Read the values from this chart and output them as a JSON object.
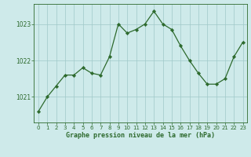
{
  "x": [
    0,
    1,
    2,
    3,
    4,
    5,
    6,
    7,
    8,
    9,
    10,
    11,
    12,
    13,
    14,
    15,
    16,
    17,
    18,
    19,
    20,
    21,
    22,
    23
  ],
  "y": [
    1020.6,
    1021.0,
    1021.3,
    1021.6,
    1021.6,
    1021.8,
    1021.65,
    1021.6,
    1022.1,
    1023.0,
    1022.75,
    1022.85,
    1023.0,
    1023.35,
    1023.0,
    1022.85,
    1022.4,
    1022.0,
    1021.65,
    1021.35,
    1021.35,
    1021.5,
    1022.1,
    1022.5
  ],
  "line_color": "#2d6a2d",
  "marker_color": "#2d6a2d",
  "bg_color": "#ceeaea",
  "grid_color": "#9fc8c8",
  "xlabel": "Graphe pression niveau de la mer (hPa)",
  "xlabel_color": "#2d6a2d",
  "tick_color": "#2d6a2d",
  "ylim": [
    1020.3,
    1023.55
  ],
  "yticks": [
    1021,
    1022,
    1023
  ],
  "xlim": [
    -0.5,
    23.5
  ],
  "xticks": [
    0,
    1,
    2,
    3,
    4,
    5,
    6,
    7,
    8,
    9,
    10,
    11,
    12,
    13,
    14,
    15,
    16,
    17,
    18,
    19,
    20,
    21,
    22,
    23
  ]
}
